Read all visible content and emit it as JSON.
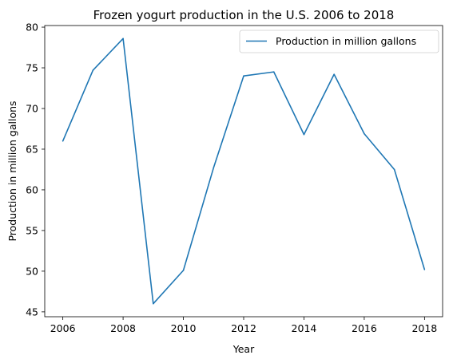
{
  "chart_data": {
    "type": "line",
    "title": "Frozen yogurt production in the U.S. 2006 to 2018",
    "xlabel": "Year",
    "ylabel": "Production in million gallons",
    "x": [
      2006,
      2007,
      2008,
      2009,
      2010,
      2011,
      2012,
      2013,
      2014,
      2015,
      2016,
      2017,
      2018
    ],
    "series": [
      {
        "name": "Production in million gallons",
        "color": "#1f77b4",
        "values": [
          66.0,
          74.7,
          78.6,
          46.0,
          50.1,
          62.7,
          74.0,
          74.5,
          66.8,
          74.2,
          66.9,
          62.5,
          50.2
        ]
      }
    ],
    "xticks": [
      2006,
      2008,
      2010,
      2012,
      2014,
      2016,
      2018
    ],
    "yticks": [
      45,
      50,
      55,
      60,
      65,
      70,
      75,
      80
    ],
    "xlim": [
      2005.4,
      2018.6
    ],
    "ylim": [
      44.4,
      80.2
    ],
    "grid": false,
    "legend_position": "top-right"
  }
}
